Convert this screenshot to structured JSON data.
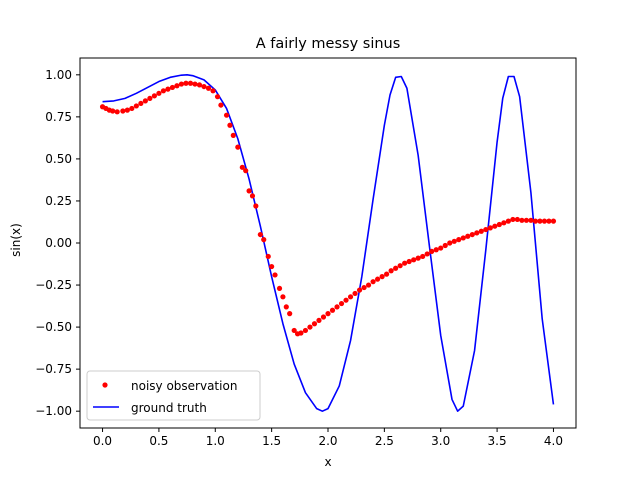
{
  "chart_data": {
    "type": "line",
    "title": "A fairly messy sinus",
    "xlabel": "x",
    "ylabel": "sin(x)",
    "xlim": [
      -0.2,
      4.2
    ],
    "ylim": [
      -1.1,
      1.1
    ],
    "xticks": [
      0.0,
      0.5,
      1.0,
      1.5,
      2.0,
      2.5,
      3.0,
      3.5,
      4.0
    ],
    "xtick_labels": [
      "0.0",
      "0.5",
      "1.0",
      "1.5",
      "2.0",
      "2.5",
      "3.0",
      "3.5",
      "4.0"
    ],
    "yticks": [
      -1.0,
      -0.75,
      -0.5,
      -0.25,
      0.0,
      0.25,
      0.5,
      0.75,
      1.0
    ],
    "ytick_labels": [
      "−1.00",
      "−0.75",
      "−0.50",
      "−0.25",
      "0.00",
      "0.25",
      "0.50",
      "0.75",
      "1.00"
    ],
    "grid": false,
    "legend_position": "lower-left",
    "series": [
      {
        "name": "noisy observation",
        "kind": "scatter",
        "color": "#ff0000",
        "x": [
          0.0,
          0.03,
          0.06,
          0.09,
          0.13,
          0.18,
          0.22,
          0.26,
          0.3,
          0.34,
          0.38,
          0.42,
          0.46,
          0.5,
          0.54,
          0.58,
          0.62,
          0.66,
          0.7,
          0.74,
          0.78,
          0.82,
          0.86,
          0.9,
          0.94,
          0.98,
          1.02,
          1.05,
          1.1,
          1.13,
          1.16,
          1.2,
          1.24,
          1.27,
          1.3,
          1.33,
          1.36,
          1.4,
          1.43,
          1.47,
          1.5,
          1.53,
          1.57,
          1.6,
          1.63,
          1.66,
          1.7,
          1.73,
          1.76,
          1.8,
          1.84,
          1.88,
          1.92,
          1.96,
          2.0,
          2.04,
          2.08,
          2.12,
          2.16,
          2.2,
          2.24,
          2.28,
          2.32,
          2.36,
          2.4,
          2.44,
          2.48,
          2.52,
          2.56,
          2.6,
          2.64,
          2.68,
          2.72,
          2.76,
          2.8,
          2.84,
          2.88,
          2.92,
          2.96,
          3.0,
          3.04,
          3.08,
          3.12,
          3.16,
          3.2,
          3.24,
          3.28,
          3.32,
          3.36,
          3.4,
          3.44,
          3.48,
          3.52,
          3.56,
          3.6,
          3.64,
          3.68,
          3.72,
          3.76,
          3.8,
          3.84,
          3.88,
          3.92,
          3.96,
          4.0
        ],
        "y": [
          0.81,
          0.8,
          0.79,
          0.785,
          0.78,
          0.785,
          0.79,
          0.8,
          0.815,
          0.83,
          0.845,
          0.86,
          0.875,
          0.89,
          0.905,
          0.915,
          0.925,
          0.935,
          0.945,
          0.95,
          0.95,
          0.945,
          0.94,
          0.93,
          0.92,
          0.905,
          0.87,
          0.82,
          0.76,
          0.7,
          0.64,
          0.57,
          0.45,
          0.43,
          0.31,
          0.28,
          0.22,
          0.05,
          0.02,
          -0.08,
          -0.14,
          -0.19,
          -0.27,
          -0.32,
          -0.38,
          -0.42,
          -0.52,
          -0.54,
          -0.535,
          -0.52,
          -0.5,
          -0.48,
          -0.46,
          -0.44,
          -0.42,
          -0.4,
          -0.38,
          -0.36,
          -0.34,
          -0.32,
          -0.3,
          -0.28,
          -0.265,
          -0.25,
          -0.23,
          -0.215,
          -0.2,
          -0.185,
          -0.165,
          -0.15,
          -0.135,
          -0.12,
          -0.11,
          -0.1,
          -0.09,
          -0.08,
          -0.065,
          -0.05,
          -0.04,
          -0.03,
          -0.015,
          0.0,
          0.01,
          0.02,
          0.03,
          0.04,
          0.05,
          0.06,
          0.07,
          0.08,
          0.09,
          0.1,
          0.11,
          0.12,
          0.13,
          0.14,
          0.14,
          0.135,
          0.135,
          0.135,
          0.13,
          0.13,
          0.13,
          0.13,
          0.13
        ]
      },
      {
        "name": "ground truth",
        "kind": "line",
        "color": "#0000ff",
        "x": [
          0.0,
          0.1,
          0.2,
          0.3,
          0.4,
          0.5,
          0.6,
          0.7,
          0.75,
          0.8,
          0.9,
          1.0,
          1.1,
          1.2,
          1.3,
          1.4,
          1.5,
          1.6,
          1.7,
          1.8,
          1.9,
          1.95,
          2.0,
          2.1,
          2.2,
          2.3,
          2.4,
          2.5,
          2.55,
          2.6,
          2.65,
          2.7,
          2.8,
          2.9,
          3.0,
          3.1,
          3.15,
          3.2,
          3.3,
          3.4,
          3.5,
          3.55,
          3.6,
          3.65,
          3.7,
          3.8,
          3.9,
          4.0
        ],
        "y": [
          0.84,
          0.845,
          0.86,
          0.89,
          0.925,
          0.96,
          0.985,
          0.998,
          1.0,
          0.995,
          0.97,
          0.91,
          0.8,
          0.62,
          0.38,
          0.1,
          -0.2,
          -0.48,
          -0.72,
          -0.89,
          -0.985,
          -1.0,
          -0.985,
          -0.85,
          -0.58,
          -0.2,
          0.26,
          0.7,
          0.88,
          0.985,
          0.99,
          0.92,
          0.52,
          -0.02,
          -0.55,
          -0.93,
          -1.0,
          -0.97,
          -0.64,
          -0.04,
          0.6,
          0.86,
          0.99,
          0.99,
          0.87,
          0.3,
          -0.45,
          -0.96
        ]
      }
    ]
  }
}
